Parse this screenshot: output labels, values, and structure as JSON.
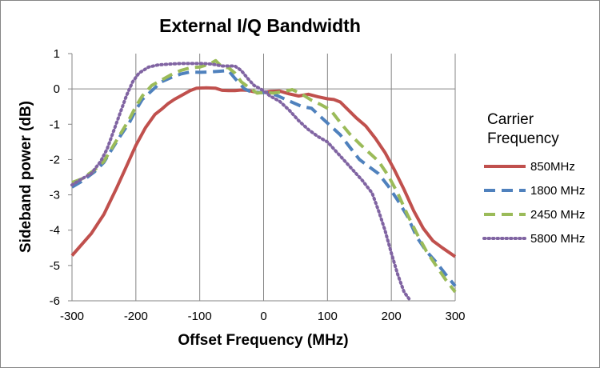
{
  "chart_data": {
    "type": "line",
    "title": "External I/Q Bandwidth",
    "xlabel": "Offset Frequency (MHz)",
    "ylabel": "Sideband power (dB)",
    "xlim": [
      -300,
      300
    ],
    "ylim": [
      -6,
      1
    ],
    "xticks": [
      -300,
      -200,
      -100,
      0,
      100,
      200,
      300
    ],
    "yticks": [
      1,
      0,
      -1,
      -2,
      -3,
      -4,
      -5,
      -6
    ],
    "grid": "vertical",
    "legend_title": "Carrier Frequency",
    "legend_title_lines": [
      "Carrier",
      "Frequency"
    ],
    "legend_position": "right",
    "series": [
      {
        "name": "850MHz",
        "color": "#c0504d",
        "style": "solid",
        "points": [
          [
            -300,
            -4.72
          ],
          [
            -270,
            -4.1
          ],
          [
            -250,
            -3.55
          ],
          [
            -230,
            -2.8
          ],
          [
            -215,
            -2.2
          ],
          [
            -200,
            -1.6
          ],
          [
            -185,
            -1.1
          ],
          [
            -170,
            -0.72
          ],
          [
            -160,
            -0.58
          ],
          [
            -150,
            -0.42
          ],
          [
            -140,
            -0.3
          ],
          [
            -125,
            -0.15
          ],
          [
            -115,
            -0.05
          ],
          [
            -105,
            0.02
          ],
          [
            -90,
            0.03
          ],
          [
            -75,
            0.02
          ],
          [
            -65,
            -0.04
          ],
          [
            -55,
            -0.05
          ],
          [
            -45,
            -0.05
          ],
          [
            -35,
            -0.03
          ],
          [
            -25,
            -0.04
          ],
          [
            -10,
            -0.1
          ],
          [
            0,
            -0.1
          ],
          [
            10,
            -0.07
          ],
          [
            25,
            -0.06
          ],
          [
            40,
            -0.14
          ],
          [
            55,
            -0.2
          ],
          [
            70,
            -0.15
          ],
          [
            85,
            -0.22
          ],
          [
            100,
            -0.28
          ],
          [
            110,
            -0.3
          ],
          [
            120,
            -0.37
          ],
          [
            130,
            -0.55
          ],
          [
            145,
            -0.82
          ],
          [
            160,
            -1.05
          ],
          [
            175,
            -1.4
          ],
          [
            190,
            -1.8
          ],
          [
            205,
            -2.3
          ],
          [
            220,
            -2.85
          ],
          [
            235,
            -3.45
          ],
          [
            250,
            -3.95
          ],
          [
            265,
            -4.3
          ],
          [
            280,
            -4.5
          ],
          [
            300,
            -4.75
          ]
        ]
      },
      {
        "name": "1800 MHz",
        "color": "#4f81bd",
        "style": "dash",
        "points": [
          [
            -300,
            -2.78
          ],
          [
            -285,
            -2.62
          ],
          [
            -265,
            -2.35
          ],
          [
            -250,
            -2.08
          ],
          [
            -240,
            -1.78
          ],
          [
            -225,
            -1.35
          ],
          [
            -210,
            -0.95
          ],
          [
            -200,
            -0.6
          ],
          [
            -190,
            -0.3
          ],
          [
            -175,
            -0.05
          ],
          [
            -160,
            0.2
          ],
          [
            -145,
            0.32
          ],
          [
            -130,
            0.42
          ],
          [
            -115,
            0.48
          ],
          [
            -100,
            0.47
          ],
          [
            -85,
            0.48
          ],
          [
            -70,
            0.5
          ],
          [
            -55,
            0.52
          ],
          [
            -45,
            0.3
          ],
          [
            -30,
            0.0
          ],
          [
            -20,
            -0.08
          ],
          [
            -5,
            -0.1
          ],
          [
            5,
            -0.1
          ],
          [
            20,
            -0.18
          ],
          [
            35,
            -0.3
          ],
          [
            45,
            -0.38
          ],
          [
            60,
            -0.5
          ],
          [
            75,
            -0.55
          ],
          [
            90,
            -0.8
          ],
          [
            105,
            -1.05
          ],
          [
            120,
            -1.3
          ],
          [
            135,
            -1.65
          ],
          [
            150,
            -2.0
          ],
          [
            165,
            -2.2
          ],
          [
            180,
            -2.4
          ],
          [
            195,
            -2.75
          ],
          [
            210,
            -3.15
          ],
          [
            225,
            -3.6
          ],
          [
            240,
            -4.2
          ],
          [
            255,
            -4.6
          ],
          [
            270,
            -4.9
          ],
          [
            285,
            -5.25
          ],
          [
            300,
            -5.58
          ]
        ]
      },
      {
        "name": "2450 MHz",
        "color": "#9bbb59",
        "style": "dash",
        "points": [
          [
            -300,
            -2.65
          ],
          [
            -285,
            -2.55
          ],
          [
            -265,
            -2.3
          ],
          [
            -250,
            -2.05
          ],
          [
            -240,
            -1.75
          ],
          [
            -225,
            -1.3
          ],
          [
            -210,
            -0.85
          ],
          [
            -200,
            -0.5
          ],
          [
            -190,
            -0.2
          ],
          [
            -175,
            0.1
          ],
          [
            -160,
            0.25
          ],
          [
            -145,
            0.4
          ],
          [
            -130,
            0.52
          ],
          [
            -115,
            0.6
          ],
          [
            -100,
            0.62
          ],
          [
            -85,
            0.7
          ],
          [
            -75,
            0.8
          ],
          [
            -65,
            0.62
          ],
          [
            -55,
            0.6
          ],
          [
            -45,
            0.45
          ],
          [
            -35,
            0.2
          ],
          [
            -20,
            0.0
          ],
          [
            -10,
            -0.12
          ],
          [
            0,
            -0.1
          ],
          [
            15,
            -0.12
          ],
          [
            30,
            -0.08
          ],
          [
            45,
            -0.02
          ],
          [
            60,
            -0.15
          ],
          [
            75,
            -0.32
          ],
          [
            90,
            -0.45
          ],
          [
            105,
            -0.6
          ],
          [
            120,
            -0.95
          ],
          [
            135,
            -1.28
          ],
          [
            150,
            -1.55
          ],
          [
            165,
            -1.8
          ],
          [
            180,
            -2.05
          ],
          [
            195,
            -2.45
          ],
          [
            210,
            -2.95
          ],
          [
            225,
            -3.55
          ],
          [
            240,
            -4.1
          ],
          [
            255,
            -4.6
          ],
          [
            270,
            -5.0
          ],
          [
            285,
            -5.4
          ],
          [
            300,
            -5.75
          ]
        ]
      },
      {
        "name": "5800 MHz",
        "color": "#8064a2",
        "style": "dot",
        "points": [
          [
            -300,
            -2.72
          ],
          [
            -285,
            -2.55
          ],
          [
            -270,
            -2.4
          ],
          [
            -255,
            -2.05
          ],
          [
            -245,
            -1.7
          ],
          [
            -235,
            -1.2
          ],
          [
            -225,
            -0.7
          ],
          [
            -215,
            -0.2
          ],
          [
            -205,
            0.2
          ],
          [
            -195,
            0.45
          ],
          [
            -180,
            0.62
          ],
          [
            -165,
            0.68
          ],
          [
            -150,
            0.7
          ],
          [
            -130,
            0.72
          ],
          [
            -110,
            0.72
          ],
          [
            -95,
            0.72
          ],
          [
            -80,
            0.7
          ],
          [
            -65,
            0.65
          ],
          [
            -45,
            0.65
          ],
          [
            -35,
            0.52
          ],
          [
            -25,
            0.3
          ],
          [
            -15,
            0.1
          ],
          [
            0,
            -0.05
          ],
          [
            10,
            -0.2
          ],
          [
            25,
            -0.35
          ],
          [
            40,
            -0.6
          ],
          [
            55,
            -0.9
          ],
          [
            70,
            -1.15
          ],
          [
            85,
            -1.35
          ],
          [
            100,
            -1.5
          ],
          [
            110,
            -1.7
          ],
          [
            125,
            -2.0
          ],
          [
            140,
            -2.3
          ],
          [
            155,
            -2.6
          ],
          [
            170,
            -2.95
          ],
          [
            180,
            -3.45
          ],
          [
            190,
            -4.0
          ],
          [
            200,
            -4.65
          ],
          [
            210,
            -5.25
          ],
          [
            220,
            -5.75
          ],
          [
            230,
            -6.0
          ]
        ]
      }
    ]
  }
}
